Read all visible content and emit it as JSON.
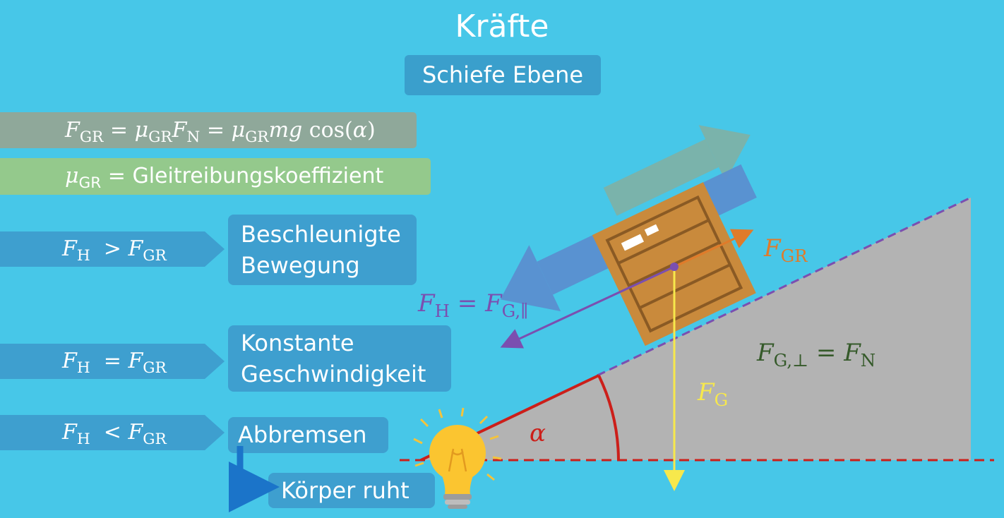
{
  "title": "Kräfte",
  "subtitle": "Schiefe Ebene",
  "formula1": {
    "f": "F",
    "gr": "GR",
    "eq1": "=",
    "mu": "μ",
    "fn": "F",
    "n": "N",
    "eq2": "=",
    "tail": "mg",
    "cos": "cos(",
    "alpha": "α",
    "close": ")"
  },
  "formula2": {
    "mu": "μ",
    "gr": "GR",
    "text": "= Gleitreibungskoeffizient"
  },
  "conditions": [
    {
      "lhs": "F",
      "lhs_sub": "H",
      "op": ">",
      "rhs": "F",
      "rhs_sub": "GR",
      "result_line1": "Beschleunigte",
      "result_line2": "Bewegung"
    },
    {
      "lhs": "F",
      "lhs_sub": "H",
      "op": "=",
      "rhs": "F",
      "rhs_sub": "GR",
      "result_line1": "Konstante",
      "result_line2": "Geschwindigkeit"
    },
    {
      "lhs": "F",
      "lhs_sub": "H",
      "op": "<",
      "rhs": "F",
      "rhs_sub": "GR",
      "result_line1": "Abbremsen"
    }
  ],
  "follow_result": "Körper ruht",
  "force_labels": {
    "fgr_main": "F",
    "fgr_sub": "GR",
    "fh_main": "F",
    "fh_sub": "H",
    "fh_eq": "=",
    "fgpar_main": "F",
    "fgpar_sub": "G,∥",
    "fgperp_main": "F",
    "fgperp_sub": "G,⊥",
    "fgperp_eq": "=",
    "fn_main": "F",
    "fn_sub": "N",
    "fg_main": "F",
    "fg_sub": "G",
    "alpha": "α"
  },
  "colors": {
    "background": "#47c7e8",
    "incline": "#b3b3b3",
    "friction": "#e07b2a",
    "downhill": "#7b4fb0",
    "gravity": "#f7e84c",
    "normal": "#355a2a",
    "angle": "#cc1f1a",
    "crate": "#c98a3c"
  },
  "icons": [
    "lightbulb-icon",
    "down-right-arrow-icon"
  ]
}
